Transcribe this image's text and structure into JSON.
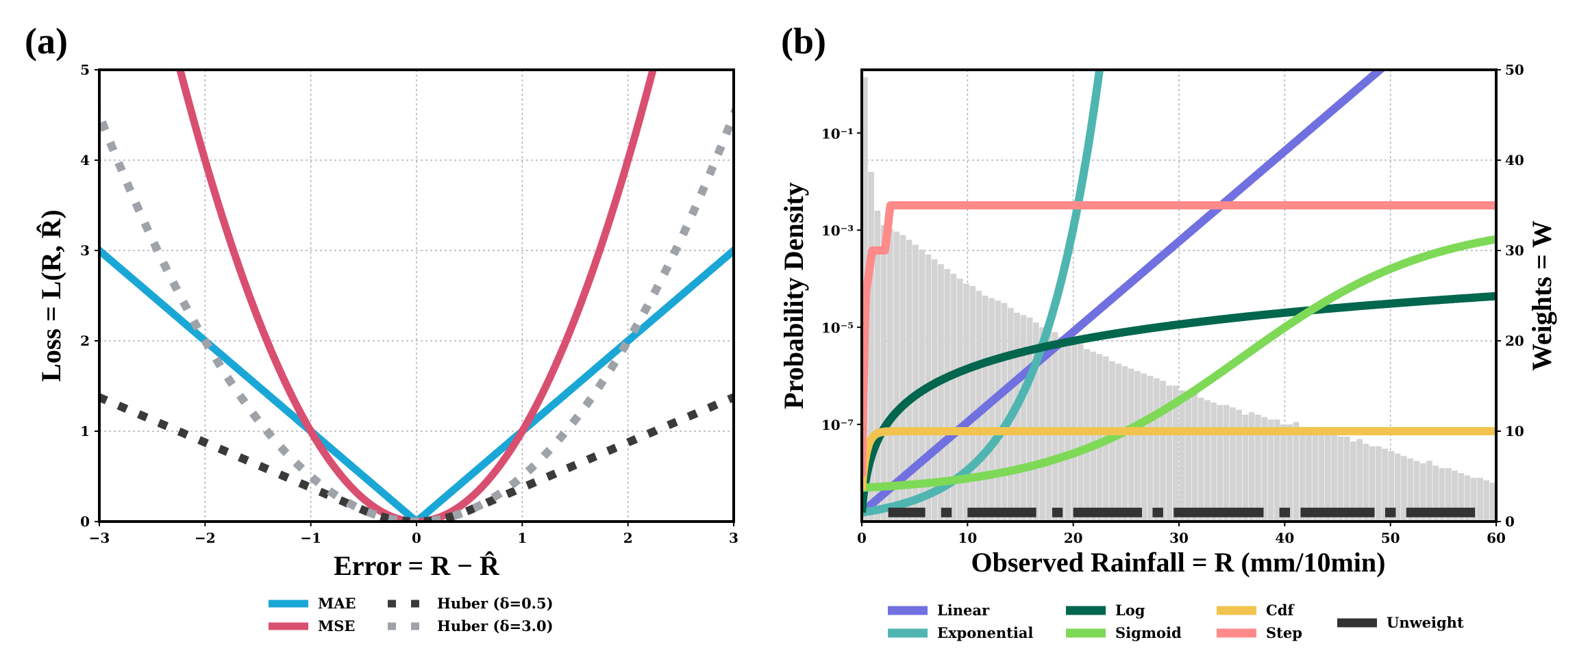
{
  "chart_data": [
    {
      "panel": "(a)",
      "type": "line",
      "xlabel": "Error = R − R̂",
      "ylabel": "Loss = L(R, R̂)",
      "xlim": [
        -3,
        3
      ],
      "ylim": [
        0,
        5
      ],
      "xticks": [
        "−3",
        "−2",
        "−1",
        "0",
        "1",
        "2",
        "3"
      ],
      "yticks": [
        "0",
        "1",
        "2",
        "3",
        "4",
        "5"
      ],
      "grid": true,
      "legend_placement": "below",
      "series": [
        {
          "name": "MAE",
          "color": "#1aa7d6",
          "style": "solid",
          "function": "abs",
          "x": [
            -3,
            0,
            3
          ],
          "y": [
            3,
            0,
            3
          ]
        },
        {
          "name": "MSE",
          "color": "#d94f70",
          "style": "solid",
          "function": "square",
          "x": [
            -2.24,
            -1,
            0,
            1,
            2.24
          ],
          "y": [
            5,
            1,
            0,
            1,
            5
          ]
        },
        {
          "name": "Huber (δ=0.5)",
          "color": "#3a3a3a",
          "style": "dotted",
          "function": "huber",
          "delta": 0.5,
          "x": [
            -3,
            -1,
            0,
            1,
            3
          ],
          "y": [
            1.375,
            0.375,
            0,
            0.375,
            1.375
          ]
        },
        {
          "name": "Huber (δ=3.0)",
          "color": "#9ea3aa",
          "style": "dotted",
          "function": "huber",
          "delta": 3.0,
          "x": [
            -3,
            -2,
            -1,
            0,
            1,
            2,
            3
          ],
          "y": [
            4.5,
            2,
            0.5,
            0,
            0.5,
            2,
            4.5
          ]
        }
      ]
    },
    {
      "panel": "(b)",
      "type": "line",
      "xlabel": "Observed Rainfall = R (mm/10min)",
      "ylabel": "Probability Density",
      "ylabel_right": "Weights = W",
      "xlim": [
        0,
        60
      ],
      "ylim_left_log": [
        1e-09,
        2
      ],
      "ylim_right": [
        0,
        50
      ],
      "xticks": [
        "0",
        "10",
        "20",
        "30",
        "40",
        "50",
        "60"
      ],
      "yticks_left": [
        "10⁻⁷",
        "10⁻⁵",
        "10⁻³",
        "10⁻¹"
      ],
      "yticks_right": [
        "0",
        "10",
        "20",
        "30",
        "40",
        "50"
      ],
      "grid": true,
      "legend_placement": "below",
      "histogram": {
        "color": "#d3d3d3",
        "bin_width": 0.6,
        "log_density": [
          0.15,
          -1.8,
          -2.6,
          -2.9,
          -2.97,
          -3.03,
          -3.1,
          -3.2,
          -3.3,
          -3.4,
          -3.5,
          -3.6,
          -3.7,
          -3.8,
          -3.9,
          -4.0,
          -4.1,
          -4.15,
          -4.25,
          -4.35,
          -4.4,
          -4.45,
          -4.5,
          -4.6,
          -4.7,
          -4.75,
          -4.8,
          -4.9,
          -5.0,
          -5.05,
          -5.1,
          -5.2,
          -5.25,
          -5.3,
          -5.35,
          -5.45,
          -5.5,
          -5.55,
          -5.6,
          -5.7,
          -5.75,
          -5.8,
          -5.85,
          -5.9,
          -5.95,
          -6.0,
          -6.05,
          -6.1,
          -6.2,
          -6.2,
          -6.3,
          -6.35,
          -6.35,
          -6.45,
          -6.5,
          -6.55,
          -6.6,
          -6.6,
          -6.65,
          -6.7,
          -6.8,
          -6.75,
          -6.8,
          -6.85,
          -6.9,
          -6.9,
          -7.0,
          -7.0,
          -6.95,
          -7.05,
          -7.1,
          -7.05,
          -7.1,
          -7.15,
          -7.2,
          -7.25,
          -7.25,
          -7.35,
          -7.3,
          -7.4,
          -7.45,
          -7.45,
          -7.5,
          -7.55,
          -7.6,
          -7.65,
          -7.7,
          -7.75,
          -7.8,
          -7.75,
          -7.85,
          -7.9,
          -7.9,
          -7.95,
          -8.0,
          -8.05,
          -8.1,
          -8.1,
          -8.15,
          -8.2,
          -7.85,
          -8.2,
          -8.1,
          -8.3,
          -8.4,
          -8.4,
          -8.3,
          -8.5,
          -8.5,
          -8.5,
          -8.35,
          -8.6,
          -8.4,
          -8.3,
          -8.6,
          -8.5,
          -8.7,
          -8.5,
          -8.5,
          -8.8,
          -8.4,
          -8.9,
          -8.6,
          -8.9,
          -8.4,
          -8.6,
          -9.0,
          -8.6,
          -8.7,
          -8.9,
          -9.0,
          -8.5,
          -8.9,
          -9.0,
          -9.0,
          -8.5,
          -9.0,
          -9.0,
          -9.0,
          -9.0,
          -9.0,
          -8.5,
          -9.0,
          -9.0,
          -7.8,
          -9.0,
          -9.0,
          -8.3,
          -9.0,
          -8.0,
          -9.0,
          -8.4,
          -9.0,
          -9.0,
          -8.6,
          -9.0,
          -9.0,
          -8.7,
          -9.0,
          -9.0,
          -8.4,
          -9.0,
          -9.0,
          -9.0,
          -8.3,
          -9.0,
          -8.8,
          -9.0,
          -8.5,
          -9.0,
          -9.0,
          -9.0,
          -8.5,
          -9.0,
          -9.0,
          -9.0,
          -9.0,
          -8.5,
          -9.0,
          -9.0,
          -8.0,
          -9.0,
          -9.0,
          -8.5,
          -9.0,
          -9.0,
          -8.6,
          -9.0
        ]
      },
      "series": [
        {
          "name": "Linear",
          "color": "#7070e0",
          "axis": "right",
          "x": [
            0,
            49
          ],
          "y": [
            1,
            50
          ]
        },
        {
          "name": "Exponential",
          "color": "#4fb5b1",
          "axis": "right",
          "x": [
            0,
            10,
            15,
            20,
            22.5
          ],
          "y": [
            1,
            4.5,
            10,
            30,
            50
          ]
        },
        {
          "name": "Log",
          "color": "#00664d",
          "axis": "right",
          "x": [
            0,
            3,
            10,
            20,
            40,
            60
          ],
          "y": [
            1,
            12,
            18,
            22,
            27,
            30
          ]
        },
        {
          "name": "Sigmoid",
          "color": "#7ed957",
          "axis": "right",
          "x": [
            0,
            10,
            20,
            30,
            40,
            50,
            60
          ],
          "y": [
            3.5,
            4.5,
            7,
            12.5,
            20,
            26,
            29.5
          ]
        },
        {
          "name": "Cdf",
          "color": "#f2c44f",
          "axis": "right",
          "x": [
            0,
            0.5,
            1.5,
            5,
            60
          ],
          "y": [
            3.5,
            8.5,
            9.6,
            10,
            10
          ]
        },
        {
          "name": "Step",
          "color": "#ff8a8a",
          "axis": "right",
          "x": [
            0,
            0.5,
            1,
            2,
            3,
            60
          ],
          "y": [
            5,
            25,
            30,
            30,
            35,
            35
          ]
        },
        {
          "name": "Unweight",
          "color": "#333333",
          "axis": "right",
          "style": "dashed",
          "x": [
            0,
            60
          ],
          "y": [
            1,
            1
          ]
        }
      ]
    }
  ],
  "figure": {
    "panel_a_label": "(a)",
    "panel_b_label": "(b)"
  }
}
